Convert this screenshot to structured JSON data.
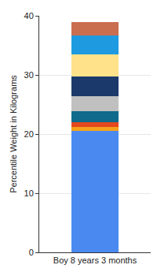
{
  "chart_data": {
    "type": "bar",
    "stacked": true,
    "y_label": "Percentile Weight in Kilograms",
    "categories": [
      "Boy 8 years 3 months"
    ],
    "series": [
      {
        "color": "#4a8af0",
        "values": [
          20.5
        ]
      },
      {
        "color": "#f5a11c",
        "values": [
          0.7
        ]
      },
      {
        "color": "#e4481e",
        "values": [
          0.8
        ]
      },
      {
        "color": "#0f6a8b",
        "values": [
          1.9
        ]
      },
      {
        "color": "#c0c0c0",
        "values": [
          2.5
        ]
      },
      {
        "color": "#1b3a6b",
        "values": [
          3.3
        ]
      },
      {
        "color": "#ffe28a",
        "values": [
          3.8
        ]
      },
      {
        "color": "#1e9be0",
        "values": [
          3.2
        ]
      },
      {
        "color": "#c96e4e",
        "values": [
          2.2
        ]
      }
    ],
    "ylim": [
      0,
      40
    ],
    "yticks": [
      0,
      10,
      20,
      30,
      40
    ],
    "grid": true
  }
}
